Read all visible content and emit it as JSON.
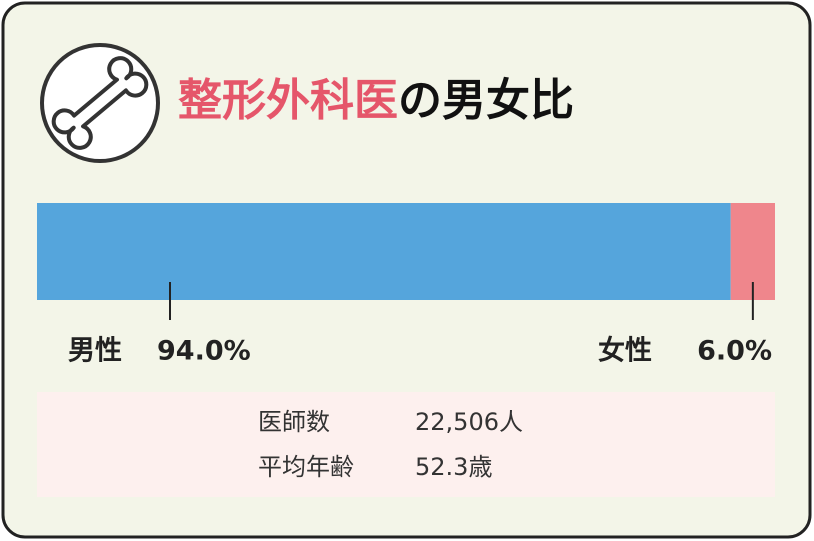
{
  "chart_data": {
    "type": "stacked-bar",
    "title": [
      "整形外科医",
      "の男女比"
    ],
    "title_colors": [
      "#e5566a",
      "#111111"
    ],
    "series": [
      {
        "name": "男性",
        "color": "#55a5dc",
        "values": [
          94.0
        ],
        "value_labels": [
          "94.0%"
        ]
      },
      {
        "name": "女性",
        "color": "#ef868c",
        "values": [
          6.0
        ],
        "value_labels": [
          "6.0%"
        ]
      }
    ],
    "xlim": [
      0,
      100
    ]
  },
  "stats": [
    {
      "label": "医師数",
      "value": "22,506人"
    },
    {
      "label": "平均年齢",
      "value": "52.3歳"
    }
  ]
}
